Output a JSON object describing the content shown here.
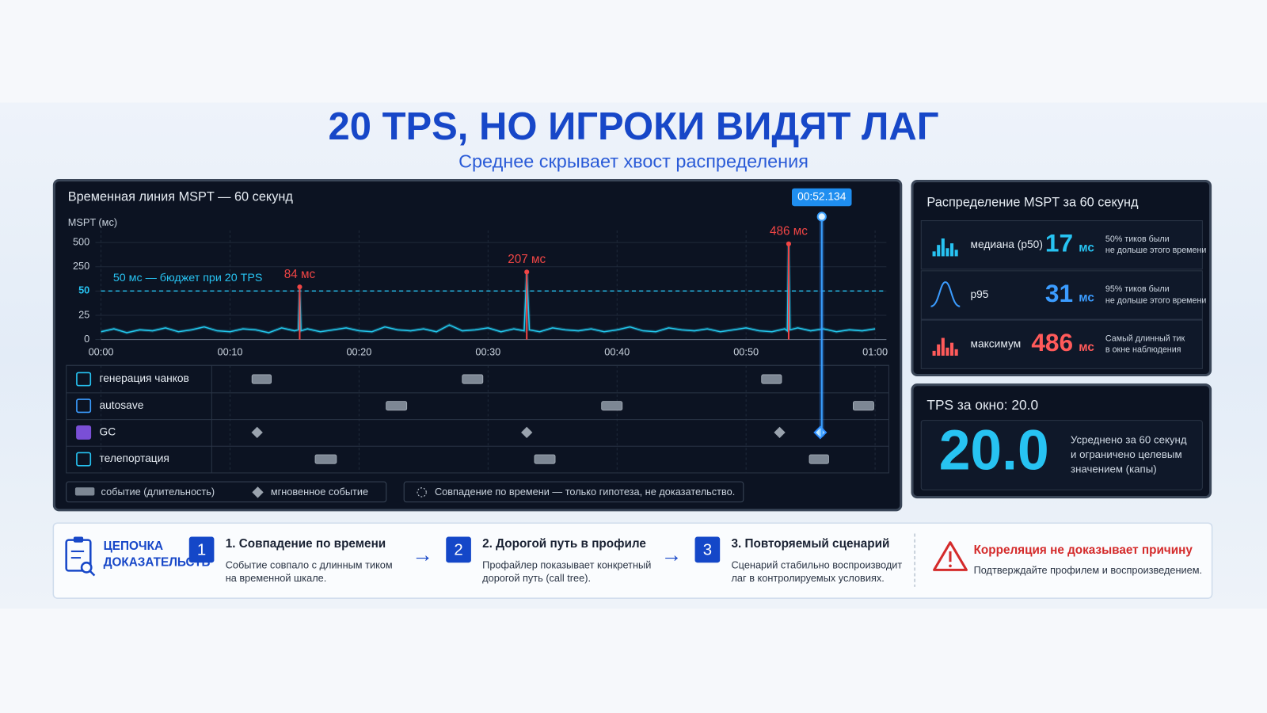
{
  "header": {
    "title": "20 TPS, НО ИГРОКИ ВИДЯТ ЛАГ",
    "subtitle": "Среднее скрывает хвост распределения"
  },
  "chart_data": {
    "type": "line",
    "title": "Временная линия MSPT — 60 секунд",
    "y_label": "MSPT (мс)",
    "color": "#22c8ee",
    "xlim": [
      0,
      60
    ],
    "xticks": [
      {
        "value": 0,
        "label": "00:00"
      },
      {
        "value": 10,
        "label": "00:10"
      },
      {
        "value": 20,
        "label": "00:20"
      },
      {
        "value": 30,
        "label": "00:30"
      },
      {
        "value": 40,
        "label": "00:40"
      },
      {
        "value": 50,
        "label": "00:50"
      },
      {
        "value": 60,
        "label": "01:00"
      }
    ],
    "ylim": [
      0,
      500
    ],
    "yticks": [
      0,
      25,
      50,
      250,
      500
    ],
    "x": [
      0,
      1,
      2,
      3,
      4,
      5,
      6,
      7,
      8,
      9,
      10,
      11,
      12,
      13,
      14,
      15,
      15.3,
      15.4,
      15.5,
      16,
      17,
      18,
      19,
      20,
      21,
      22,
      23,
      24,
      25,
      26,
      27,
      28,
      29,
      30,
      31,
      32,
      32.8,
      33,
      33.2,
      34,
      35,
      36,
      37,
      38,
      39,
      40,
      41,
      42,
      43,
      44,
      45,
      46,
      47,
      48,
      49,
      50,
      51,
      52,
      53,
      53.2,
      53.3,
      53.4,
      54,
      55,
      56,
      57,
      58,
      59,
      60
    ],
    "values": [
      8,
      11,
      7,
      10,
      9,
      12,
      8,
      10,
      13,
      9,
      8,
      11,
      10,
      7,
      12,
      9,
      10,
      84,
      9,
      11,
      8,
      10,
      12,
      9,
      8,
      13,
      10,
      9,
      11,
      8,
      15,
      9,
      10,
      12,
      8,
      11,
      9,
      207,
      10,
      8,
      12,
      10,
      9,
      11,
      8,
      10,
      13,
      9,
      8,
      12,
      10,
      9,
      11,
      8,
      10,
      12,
      9,
      8,
      11,
      9,
      486,
      10,
      12,
      9,
      11,
      8,
      10,
      9,
      11
    ],
    "budget": {
      "value": 50,
      "label": "50 мс — бюджет при 20 TPS"
    },
    "annotations": [
      {
        "x": 15.4,
        "value": 84,
        "label": "84 мс"
      },
      {
        "x": 33,
        "value": 207,
        "label": "207 мс"
      },
      {
        "x": 53.3,
        "value": 486,
        "label": "486 мс"
      }
    ],
    "annotation_color": "#f04545",
    "cursor_label": "00:52.134",
    "lanes": [
      {
        "name": "генерация чанков",
        "events": [
          [
            11.7,
            13.2
          ],
          [
            28,
            29.6
          ],
          [
            51.2,
            52.75
          ]
        ]
      },
      {
        "name": "autosave",
        "events": [
          [
            22.1,
            23.7
          ],
          [
            38.8,
            40.4
          ],
          [
            58.3,
            59.9
          ]
        ]
      },
      {
        "name": "GC",
        "events": [
          12.1,
          33,
          52.6,
          55.75
        ]
      },
      {
        "name": "телепортация",
        "events": [
          [
            16.6,
            18.25
          ],
          [
            33.6,
            35.2
          ],
          [
            54.9,
            56.4
          ]
        ]
      }
    ],
    "legend_items": [
      "событие (длительность)",
      "мгновенное событие"
    ],
    "note": "Совпадение по времени — только гипотеза, не доказательство."
  },
  "distribution": {
    "title": "Распределение MSPT за 60 секунд",
    "rows": [
      {
        "label": "медиана (p50)",
        "value": 17,
        "unit": "мс",
        "color": "#27c3f2",
        "note": [
          "50% тиков были",
          "не дольше этого времени"
        ]
      },
      {
        "label": "p95",
        "value": 31,
        "unit": "мс",
        "color": "#3b9cff",
        "note": [
          "95% тиков были",
          "не дольше этого времени"
        ]
      },
      {
        "label": "максимум",
        "value": 486,
        "unit": "мс",
        "color": "#ff5a5a",
        "note": [
          "Самый длинный тик",
          "в окне наблюдения"
        ]
      }
    ]
  },
  "tps": {
    "title": "TPS за окно: 20.0",
    "value": "20.0",
    "note": [
      "Усреднено за 60 секунд",
      "и ограничено целевым",
      "значением (капы)"
    ]
  },
  "evidence": {
    "heading": [
      "ЦЕПОЧКА",
      "ДОКАЗАТЕЛЬСТВ"
    ],
    "steps": [
      {
        "number": 1,
        "title": "1. Совпадение по времени",
        "text": [
          "Событие совпало с длинным тиком",
          "на временной шкале."
        ]
      },
      {
        "number": 2,
        "title": "2. Дорогой путь в профиле",
        "text": [
          "Профайлер показывает конкретный",
          "дорогой путь (call tree)."
        ]
      },
      {
        "number": 3,
        "title": "3. Повторяемый сценарий",
        "text": [
          "Сценарий стабильно воспроизводит",
          "лаг в контролируемых условиях."
        ]
      }
    ],
    "warning": {
      "title": "Корреляция не доказывает причину",
      "text": "Подтверждайте профилем и воспроизведением."
    }
  }
}
